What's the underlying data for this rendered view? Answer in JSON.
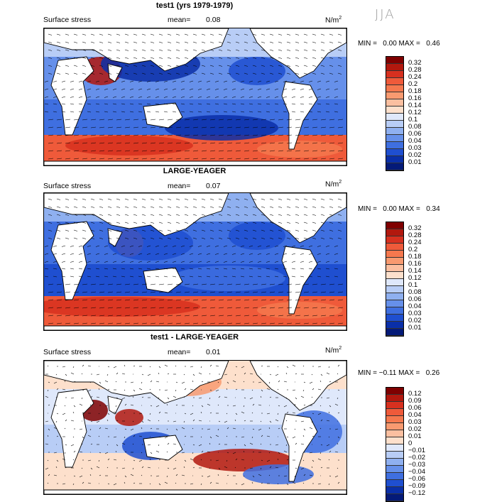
{
  "season": "JJA",
  "units": "N/m",
  "units_sup": "2",
  "variable": "Surface stress",
  "panels": [
    {
      "title": "test1 (yrs 1979-1979)",
      "mean_label": "mean=",
      "mean": "0.08",
      "min_label": "MIN =",
      "min": "0.00",
      "max_label": "MAX =",
      "max": "0.46",
      "legend_labels": [
        "0.32",
        "0.28",
        "0.24",
        "0.2",
        "0.18",
        "0.16",
        "0.14",
        "0.12",
        "0.1",
        "0.08",
        "0.06",
        "0.04",
        "0.03",
        "0.02",
        "0.01"
      ]
    },
    {
      "title": "LARGE-YEAGER",
      "mean_label": "mean=",
      "mean": "0.07",
      "min_label": "MIN =",
      "min": "0.00",
      "max_label": "MAX =",
      "max": "0.34",
      "legend_labels": [
        "0.32",
        "0.28",
        "0.24",
        "0.2",
        "0.18",
        "0.16",
        "0.14",
        "0.12",
        "0.1",
        "0.08",
        "0.06",
        "0.04",
        "0.03",
        "0.02",
        "0.01"
      ]
    },
    {
      "title": "test1 - LARGE-YEAGER",
      "mean_label": "mean=",
      "mean": "0.01",
      "min_label": "MIN =",
      "min": "−0.11",
      "max_label": "MAX =",
      "max": "0.26",
      "legend_labels": [
        "0.12",
        "0.09",
        "0.06",
        "0.04",
        "0.03",
        "0.02",
        "0.01",
        "0",
        "−0.01",
        "−0.02",
        "−0.03",
        "−0.04",
        "−0.06",
        "−0.09",
        "−0.12"
      ]
    }
  ],
  "colors": {
    "scale": [
      "#7f0000",
      "#b2180e",
      "#d7301f",
      "#ef5a3a",
      "#f5784e",
      "#f89a70",
      "#fbbfa0",
      "#fde0cc",
      "#dfe8fb",
      "#b8cdf6",
      "#8fb0f0",
      "#6690ea",
      "#3f6fe0",
      "#1f4fd0",
      "#0a2fa8",
      "#041a78"
    ],
    "land": "#ffffff",
    "coast": "#000000"
  }
}
